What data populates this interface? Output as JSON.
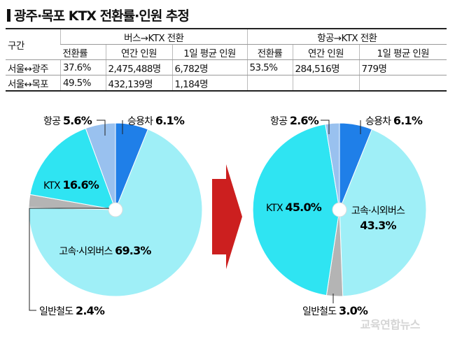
{
  "title": "광주·목포 KTX 전환률·인원 추정",
  "table": {
    "region_header": "구간",
    "groups": [
      "버스→KTX 전환",
      "항공→KTX 전환"
    ],
    "subheaders": [
      "전환률",
      "연간 인원",
      "1일 평균 인원",
      "전환률",
      "연간 인원",
      "1일 평균 인원"
    ],
    "rows": [
      {
        "route": "서울↔광주",
        "cells": [
          "37.6%",
          "2,475,488명",
          "6,782명",
          "53.5%",
          "284,516명",
          "779명"
        ]
      },
      {
        "route": "서울↔목포",
        "cells": [
          "49.5%",
          "432,139명",
          "1,184명",
          "",
          "",
          ""
        ]
      }
    ]
  },
  "chart_data": [
    {
      "type": "pie",
      "slices": [
        {
          "label": "승용차",
          "value": 6.1,
          "display": "6.1%",
          "color": "#1f7fe8"
        },
        {
          "label": "고속·시외버스",
          "value": 69.3,
          "display": "69.3%",
          "color": "#9feff7"
        },
        {
          "label": "일반철도",
          "value": 2.4,
          "display": "2.4%",
          "color": "#b4b4b4"
        },
        {
          "label": "KTX",
          "value": 16.6,
          "display": "16.6%",
          "color": "#2fe4f2"
        },
        {
          "label": "항공",
          "value": 5.6,
          "display": "5.6%",
          "color": "#99c1ef"
        }
      ]
    },
    {
      "type": "pie",
      "slices": [
        {
          "label": "승용차",
          "value": 6.1,
          "display": "6.1%",
          "color": "#1f7fe8"
        },
        {
          "label": "고속·시외버스",
          "value": 43.3,
          "display": "43.3%",
          "color": "#9feff7"
        },
        {
          "label": "일반철도",
          "value": 3.0,
          "display": "3.0%",
          "color": "#b4b4b4"
        },
        {
          "label": "KTX",
          "value": 45.0,
          "display": "45.0%",
          "color": "#2fe4f2"
        },
        {
          "label": "항공",
          "value": 2.6,
          "display": "2.6%",
          "color": "#99c1ef"
        }
      ]
    }
  ],
  "arrow_color": "#cc1f1f",
  "watermark": "교육연합뉴스"
}
